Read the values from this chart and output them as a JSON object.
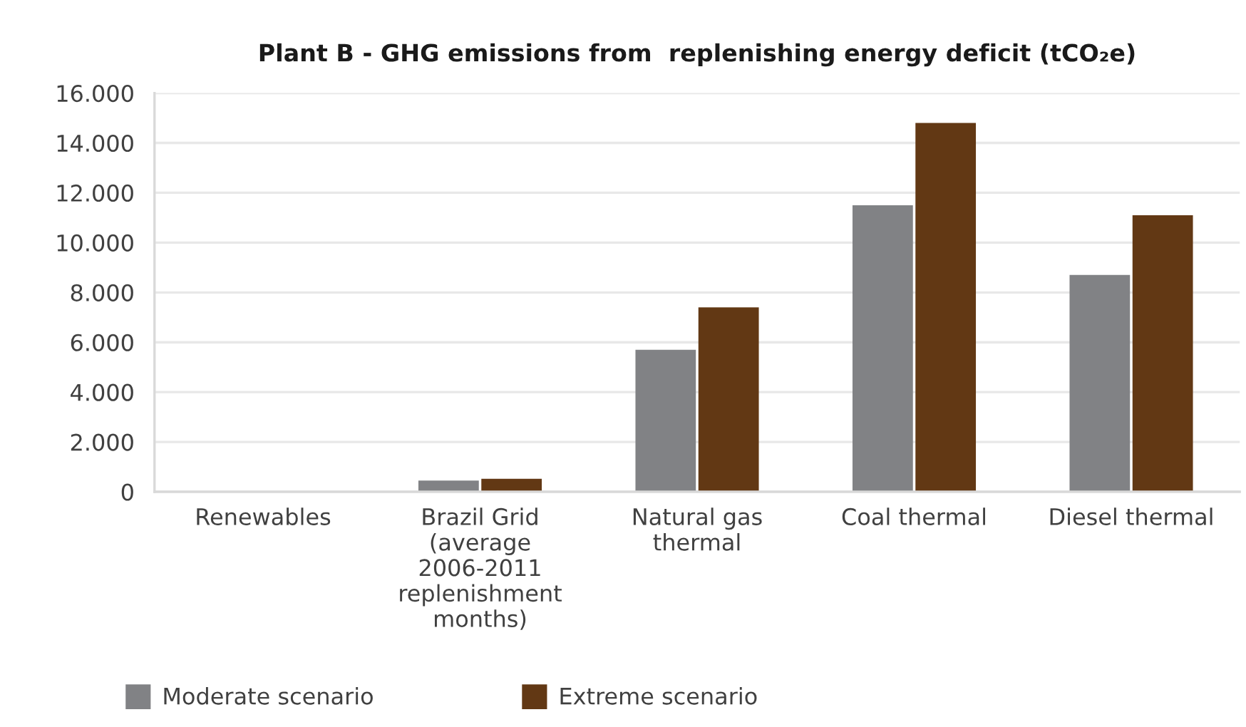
{
  "chart_data": {
    "type": "bar",
    "title": "Plant B - GHG emissions from  replenishing energy deficit (tCO₂e)",
    "categories": [
      "Renewables",
      "Brazil Grid\n(average\n2006-2011\nreplenishment\nmonths)",
      "Natural gas\nthermal",
      "Coal thermal",
      "Diesel thermal"
    ],
    "series": [
      {
        "name": "Moderate scenario",
        "color": "#818285",
        "values": [
          0,
          450,
          5700,
          11500,
          8700
        ]
      },
      {
        "name": "Extreme scenario",
        "color": "#623814",
        "values": [
          0,
          520,
          7400,
          14800,
          11100
        ]
      }
    ],
    "ylim": [
      0,
      16000
    ],
    "yticks": [
      0,
      {
        "value": 2000,
        "label": "2.000"
      },
      {
        "value": 4000,
        "label": "4.000"
      },
      {
        "value": 6000,
        "label": "6.000"
      },
      {
        "value": 8000,
        "label": "8.000"
      },
      {
        "value": 10000,
        "label": "10.000"
      },
      {
        "value": 12000,
        "label": "12.000"
      },
      {
        "value": 14000,
        "label": "14.000"
      },
      {
        "value": 16000,
        "label": "16.000"
      }
    ],
    "grid": "y",
    "legend": "bottom left"
  }
}
